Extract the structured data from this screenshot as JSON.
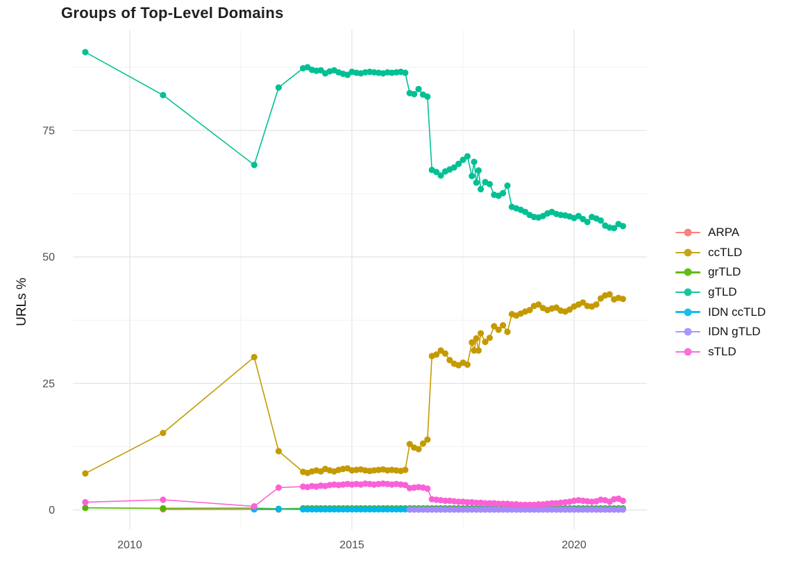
{
  "chart_data": {
    "type": "line",
    "title": "Groups of Top-Level Domains",
    "xlabel": "",
    "ylabel": "URLs %",
    "grid": true,
    "legend_position": "right",
    "x_range": [
      2008.72,
      2021.64
    ],
    "y_range": [
      -3.9,
      94.9
    ],
    "x_ticks": {
      "values": [
        2010,
        2015,
        2020
      ],
      "labels": [
        "2010",
        "2015",
        "2020"
      ],
      "minor": [
        2012.5,
        2017.5
      ]
    },
    "y_ticks": {
      "values": [
        0,
        25,
        50,
        75
      ],
      "labels": [
        "0",
        "25",
        "50",
        "75"
      ],
      "minor": [
        12.5,
        37.5,
        62.5,
        87.5
      ]
    },
    "colors": {
      "major_grid": "#e4e4e4",
      "minor_grid": "#efefef",
      "tick_label": "#4d4d4d",
      "title_text": "#1f1f1f"
    },
    "series": [
      {
        "name": "ARPA",
        "color": "#F8766D",
        "points": [
          [
            2010.75,
            0.1
          ],
          [
            2012.8,
            0.1
          ],
          [
            2013.35,
            0.05
          ]
        ]
      },
      {
        "name": "ccTLD",
        "color": "#C49A00",
        "points": [
          [
            2009,
            7.2
          ],
          [
            2010.75,
            15.2
          ],
          [
            2012.8,
            30.2
          ],
          [
            2013.35,
            11.6
          ],
          [
            2013.9,
            7.5
          ],
          [
            2014,
            7.3
          ],
          [
            2014.1,
            7.6
          ],
          [
            2014.2,
            7.8
          ],
          [
            2014.3,
            7.6
          ],
          [
            2014.4,
            8.1
          ],
          [
            2014.5,
            7.8
          ],
          [
            2014.6,
            7.6
          ],
          [
            2014.7,
            7.9
          ],
          [
            2014.8,
            8.1
          ],
          [
            2014.9,
            8.2
          ],
          [
            2015,
            7.8
          ],
          [
            2015.1,
            7.9
          ],
          [
            2015.2,
            8
          ],
          [
            2015.3,
            7.8
          ],
          [
            2015.4,
            7.7
          ],
          [
            2015.5,
            7.8
          ],
          [
            2015.6,
            7.9
          ],
          [
            2015.7,
            8
          ],
          [
            2015.8,
            7.8
          ],
          [
            2015.9,
            7.9
          ],
          [
            2016,
            7.8
          ],
          [
            2016.1,
            7.7
          ],
          [
            2016.2,
            7.9
          ],
          [
            2016.3,
            13
          ],
          [
            2016.4,
            12.3
          ],
          [
            2016.5,
            12
          ],
          [
            2016.6,
            13.1
          ],
          [
            2016.7,
            13.9
          ],
          [
            2016.8,
            30.4
          ],
          [
            2016.9,
            30.7
          ],
          [
            2017,
            31.5
          ],
          [
            2017.1,
            30.9
          ],
          [
            2017.2,
            29.6
          ],
          [
            2017.3,
            28.9
          ],
          [
            2017.4,
            28.6
          ],
          [
            2017.5,
            29.1
          ],
          [
            2017.6,
            28.7
          ],
          [
            2017.7,
            33.1
          ],
          [
            2017.75,
            31.5
          ],
          [
            2017.8,
            33.9
          ],
          [
            2017.85,
            31.5
          ],
          [
            2017.9,
            34.9
          ],
          [
            2018,
            33.2
          ],
          [
            2018.1,
            34
          ],
          [
            2018.2,
            36.3
          ],
          [
            2018.3,
            35.6
          ],
          [
            2018.4,
            36.5
          ],
          [
            2018.5,
            35.2
          ],
          [
            2018.6,
            38.7
          ],
          [
            2018.7,
            38.4
          ],
          [
            2018.8,
            38.8
          ],
          [
            2018.9,
            39.2
          ],
          [
            2019,
            39.5
          ],
          [
            2019.1,
            40.3
          ],
          [
            2019.2,
            40.6
          ],
          [
            2019.3,
            39.9
          ],
          [
            2019.4,
            39.5
          ],
          [
            2019.5,
            39.8
          ],
          [
            2019.6,
            40
          ],
          [
            2019.7,
            39.4
          ],
          [
            2019.8,
            39.2
          ],
          [
            2019.9,
            39.6
          ],
          [
            2020,
            40.2
          ],
          [
            2020.1,
            40.6
          ],
          [
            2020.2,
            41
          ],
          [
            2020.3,
            40.3
          ],
          [
            2020.4,
            40.2
          ],
          [
            2020.5,
            40.6
          ],
          [
            2020.6,
            41.8
          ],
          [
            2020.7,
            42.4
          ],
          [
            2020.8,
            42.6
          ],
          [
            2020.9,
            41.6
          ],
          [
            2021,
            41.9
          ],
          [
            2021.1,
            41.7
          ]
        ]
      },
      {
        "name": "grTLD",
        "color": "#53B400",
        "points": [
          [
            2009,
            0.4
          ],
          [
            2010.75,
            0.3
          ],
          [
            2012.8,
            0.35
          ],
          [
            2013.35,
            0.2
          ]
        ],
        "repeat": {
          "from": 2013.9,
          "to": 2021.1,
          "step": 0.1,
          "value": 0.3
        }
      },
      {
        "name": "gTLD",
        "color": "#00C094",
        "points": [
          [
            2009,
            90.5
          ],
          [
            2010.75,
            82
          ],
          [
            2012.8,
            68.2
          ],
          [
            2013.35,
            83.5
          ],
          [
            2013.9,
            87.3
          ],
          [
            2014,
            87.5
          ],
          [
            2014.1,
            87
          ],
          [
            2014.2,
            86.8
          ],
          [
            2014.3,
            86.9
          ],
          [
            2014.4,
            86.3
          ],
          [
            2014.5,
            86.7
          ],
          [
            2014.6,
            86.9
          ],
          [
            2014.7,
            86.5
          ],
          [
            2014.8,
            86.2
          ],
          [
            2014.9,
            86
          ],
          [
            2015,
            86.6
          ],
          [
            2015.1,
            86.4
          ],
          [
            2015.2,
            86.3
          ],
          [
            2015.3,
            86.5
          ],
          [
            2015.4,
            86.6
          ],
          [
            2015.5,
            86.5
          ],
          [
            2015.6,
            86.4
          ],
          [
            2015.7,
            86.3
          ],
          [
            2015.8,
            86.5
          ],
          [
            2015.9,
            86.4
          ],
          [
            2016,
            86.5
          ],
          [
            2016.1,
            86.6
          ],
          [
            2016.2,
            86.4
          ],
          [
            2016.3,
            82.4
          ],
          [
            2016.4,
            82.2
          ],
          [
            2016.5,
            83.2
          ],
          [
            2016.6,
            82.1
          ],
          [
            2016.7,
            81.7
          ],
          [
            2016.8,
            67.2
          ],
          [
            2016.9,
            66.8
          ],
          [
            2017,
            66.1
          ],
          [
            2017.1,
            66.9
          ],
          [
            2017.2,
            67.3
          ],
          [
            2017.3,
            67.7
          ],
          [
            2017.4,
            68.4
          ],
          [
            2017.5,
            69.2
          ],
          [
            2017.6,
            69.9
          ],
          [
            2017.7,
            66
          ],
          [
            2017.75,
            68.8
          ],
          [
            2017.8,
            64.7
          ],
          [
            2017.85,
            67.1
          ],
          [
            2017.9,
            63.4
          ],
          [
            2018,
            64.8
          ],
          [
            2018.1,
            64.4
          ],
          [
            2018.2,
            62.3
          ],
          [
            2018.3,
            62.1
          ],
          [
            2018.4,
            62.6
          ],
          [
            2018.5,
            64.1
          ],
          [
            2018.6,
            59.9
          ],
          [
            2018.7,
            59.6
          ],
          [
            2018.8,
            59.3
          ],
          [
            2018.9,
            58.9
          ],
          [
            2019,
            58.3
          ],
          [
            2019.1,
            57.9
          ],
          [
            2019.2,
            57.8
          ],
          [
            2019.3,
            58.1
          ],
          [
            2019.4,
            58.6
          ],
          [
            2019.5,
            58.9
          ],
          [
            2019.6,
            58.5
          ],
          [
            2019.7,
            58.3
          ],
          [
            2019.8,
            58.2
          ],
          [
            2019.9,
            58
          ],
          [
            2020,
            57.7
          ],
          [
            2020.1,
            58.1
          ],
          [
            2020.2,
            57.5
          ],
          [
            2020.3,
            56.9
          ],
          [
            2020.4,
            57.9
          ],
          [
            2020.5,
            57.6
          ],
          [
            2020.6,
            57.2
          ],
          [
            2020.7,
            56.2
          ],
          [
            2020.8,
            55.8
          ],
          [
            2020.9,
            55.7
          ],
          [
            2021,
            56.5
          ],
          [
            2021.1,
            56.1
          ]
        ]
      },
      {
        "name": "IDN ccTLD",
        "color": "#00B6EB",
        "points": [
          [
            2012.8,
            0.1
          ],
          [
            2013.35,
            0.15
          ]
        ],
        "repeat": {
          "from": 2013.9,
          "to": 2021.1,
          "step": 0.1,
          "value": 0.1
        }
      },
      {
        "name": "IDN gTLD",
        "color": "#A58AFF",
        "points": [],
        "repeat": {
          "from": 2016.3,
          "to": 2021.1,
          "step": 0.1,
          "value": 0.05
        }
      },
      {
        "name": "sTLD",
        "color": "#FB61D7",
        "points": [
          [
            2009,
            1.5
          ],
          [
            2010.75,
            2
          ],
          [
            2012.8,
            0.7
          ],
          [
            2013.35,
            4.4
          ],
          [
            2013.9,
            4.6
          ],
          [
            2014,
            4.5
          ],
          [
            2014.1,
            4.7
          ],
          [
            2014.2,
            4.6
          ],
          [
            2014.3,
            4.8
          ],
          [
            2014.4,
            4.7
          ],
          [
            2014.5,
            4.9
          ],
          [
            2014.6,
            5
          ],
          [
            2014.7,
            4.9
          ],
          [
            2014.8,
            5
          ],
          [
            2014.9,
            5.1
          ],
          [
            2015,
            5
          ],
          [
            2015.1,
            5.1
          ],
          [
            2015.2,
            5
          ],
          [
            2015.3,
            5.2
          ],
          [
            2015.4,
            5.1
          ],
          [
            2015.5,
            5
          ],
          [
            2015.6,
            5.1
          ],
          [
            2015.7,
            5.2
          ],
          [
            2015.8,
            5.1
          ],
          [
            2015.9,
            5
          ],
          [
            2016,
            5.1
          ],
          [
            2016.1,
            5
          ],
          [
            2016.2,
            4.9
          ],
          [
            2016.3,
            4.3
          ],
          [
            2016.4,
            4.4
          ],
          [
            2016.5,
            4.5
          ],
          [
            2016.6,
            4.4
          ],
          [
            2016.7,
            4.2
          ],
          [
            2016.8,
            2.1
          ],
          [
            2016.9,
            2
          ],
          [
            2017,
            1.9
          ],
          [
            2017.1,
            1.8
          ],
          [
            2017.2,
            1.8
          ],
          [
            2017.3,
            1.7
          ],
          [
            2017.4,
            1.6
          ],
          [
            2017.5,
            1.6
          ],
          [
            2017.6,
            1.5
          ],
          [
            2017.7,
            1.5
          ],
          [
            2017.8,
            1.4
          ],
          [
            2017.9,
            1.4
          ],
          [
            2018,
            1.3
          ],
          [
            2018.1,
            1.3
          ],
          [
            2018.2,
            1.3
          ],
          [
            2018.3,
            1.2
          ],
          [
            2018.4,
            1.2
          ],
          [
            2018.5,
            1.2
          ],
          [
            2018.6,
            1.1
          ],
          [
            2018.7,
            1.1
          ],
          [
            2018.8,
            1
          ],
          [
            2018.9,
            1
          ],
          [
            2019,
            1
          ],
          [
            2019.1,
            1
          ],
          [
            2019.2,
            1.1
          ],
          [
            2019.3,
            1.1
          ],
          [
            2019.4,
            1.2
          ],
          [
            2019.5,
            1.3
          ],
          [
            2019.6,
            1.3
          ],
          [
            2019.7,
            1.4
          ],
          [
            2019.8,
            1.5
          ],
          [
            2019.9,
            1.6
          ],
          [
            2020,
            1.8
          ],
          [
            2020.1,
            1.9
          ],
          [
            2020.2,
            1.8
          ],
          [
            2020.3,
            1.7
          ],
          [
            2020.4,
            1.6
          ],
          [
            2020.5,
            1.7
          ],
          [
            2020.6,
            2
          ],
          [
            2020.7,
            1.9
          ],
          [
            2020.8,
            1.6
          ],
          [
            2020.9,
            2.1
          ],
          [
            2021,
            2.2
          ],
          [
            2021.1,
            1.8
          ]
        ]
      }
    ]
  }
}
